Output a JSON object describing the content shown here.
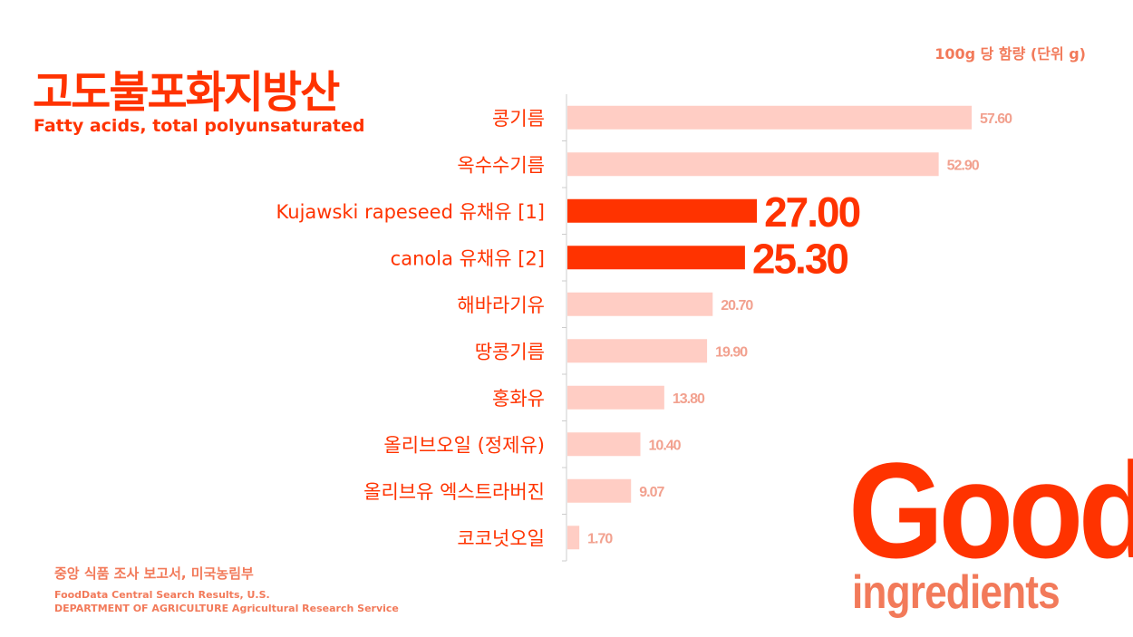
{
  "header": {
    "title": "고도불포화지방산",
    "subtitle": "Fatty acids, total polyunsaturated",
    "unit_note": "100g 당 함량 (단위 g)"
  },
  "source": {
    "korean": "중앙 식품 조사 보고서, 미국농림부",
    "english_line1": "FoodData Central Search Results, U.S.",
    "english_line2": "DEPARTMENT OF AGRICULTURE Agricultural Research Service"
  },
  "badge": {
    "word": "Good",
    "sub": "ingredients"
  },
  "colors": {
    "highlight": "#ff3300",
    "normal_bar": "#ffcdc4",
    "normal_label": "#f2a18f",
    "category_text": "#ff3300",
    "axis": "#cccccc"
  },
  "chart_data": {
    "type": "bar",
    "orientation": "horizontal",
    "categories": [
      "콩기름",
      "옥수수기름",
      "Kujawski rapeseed 유채유 [1]",
      "canola 유채유 [2]",
      "해바라기유",
      "땅콩기름",
      "홍화유",
      "올리브오일 (정제유)",
      "올리브유 엑스트라버진",
      "코코넛오일"
    ],
    "values": [
      57.6,
      52.9,
      27.0,
      25.3,
      20.7,
      19.9,
      13.8,
      10.4,
      9.07,
      1.7
    ],
    "value_labels": [
      "57.60",
      "52.90",
      "27.00",
      "25.30",
      "20.70",
      "19.90",
      "13.80",
      "10.40",
      "9.07",
      "1.70"
    ],
    "highlighted": [
      false,
      false,
      true,
      true,
      false,
      false,
      false,
      false,
      false,
      false
    ],
    "xlim": [
      0,
      60
    ],
    "grid": false
  }
}
